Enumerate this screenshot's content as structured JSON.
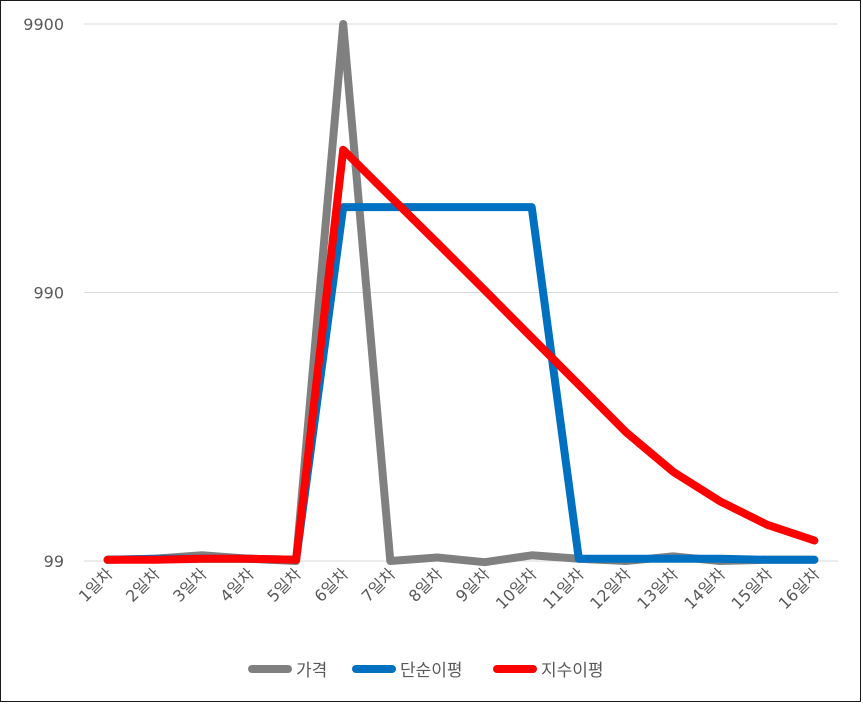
{
  "chart_data": {
    "type": "line",
    "title": "",
    "xlabel": "",
    "ylabel": "",
    "y_scale": "log",
    "ylim": [
      99,
      9900
    ],
    "y_ticks": [
      "99",
      "990",
      "9900"
    ],
    "grid": true,
    "legend_position": "bottom",
    "categories": [
      "1일차",
      "2일차",
      "3일차",
      "4일차",
      "5일차",
      "6일차",
      "7일차",
      "8일차",
      "9일차",
      "10일차",
      "11일차",
      "12일차",
      "13일차",
      "14일차",
      "15일차",
      "16일차"
    ],
    "series": [
      {
        "name": "가격",
        "color": "#808080",
        "values": [
          100,
          101,
          104,
          101,
          99,
          9900,
          99,
          102,
          98,
          104,
          101,
          99,
          103,
          99,
          100,
          100
        ]
      },
      {
        "name": "단순이평",
        "color": "#0070c0",
        "values": [
          100,
          101,
          101,
          101,
          100,
          2059,
          2059,
          2059,
          2059,
          2059,
          101,
          101,
          101,
          101,
          100,
          100
        ]
      },
      {
        "name": "지수이평",
        "color": "#ff0000",
        "values": [
          100,
          100,
          101,
          101,
          100,
          3366,
          2254,
          1514,
          1011,
          673,
          449,
          299,
          213,
          165,
          135,
          118
        ]
      }
    ]
  }
}
